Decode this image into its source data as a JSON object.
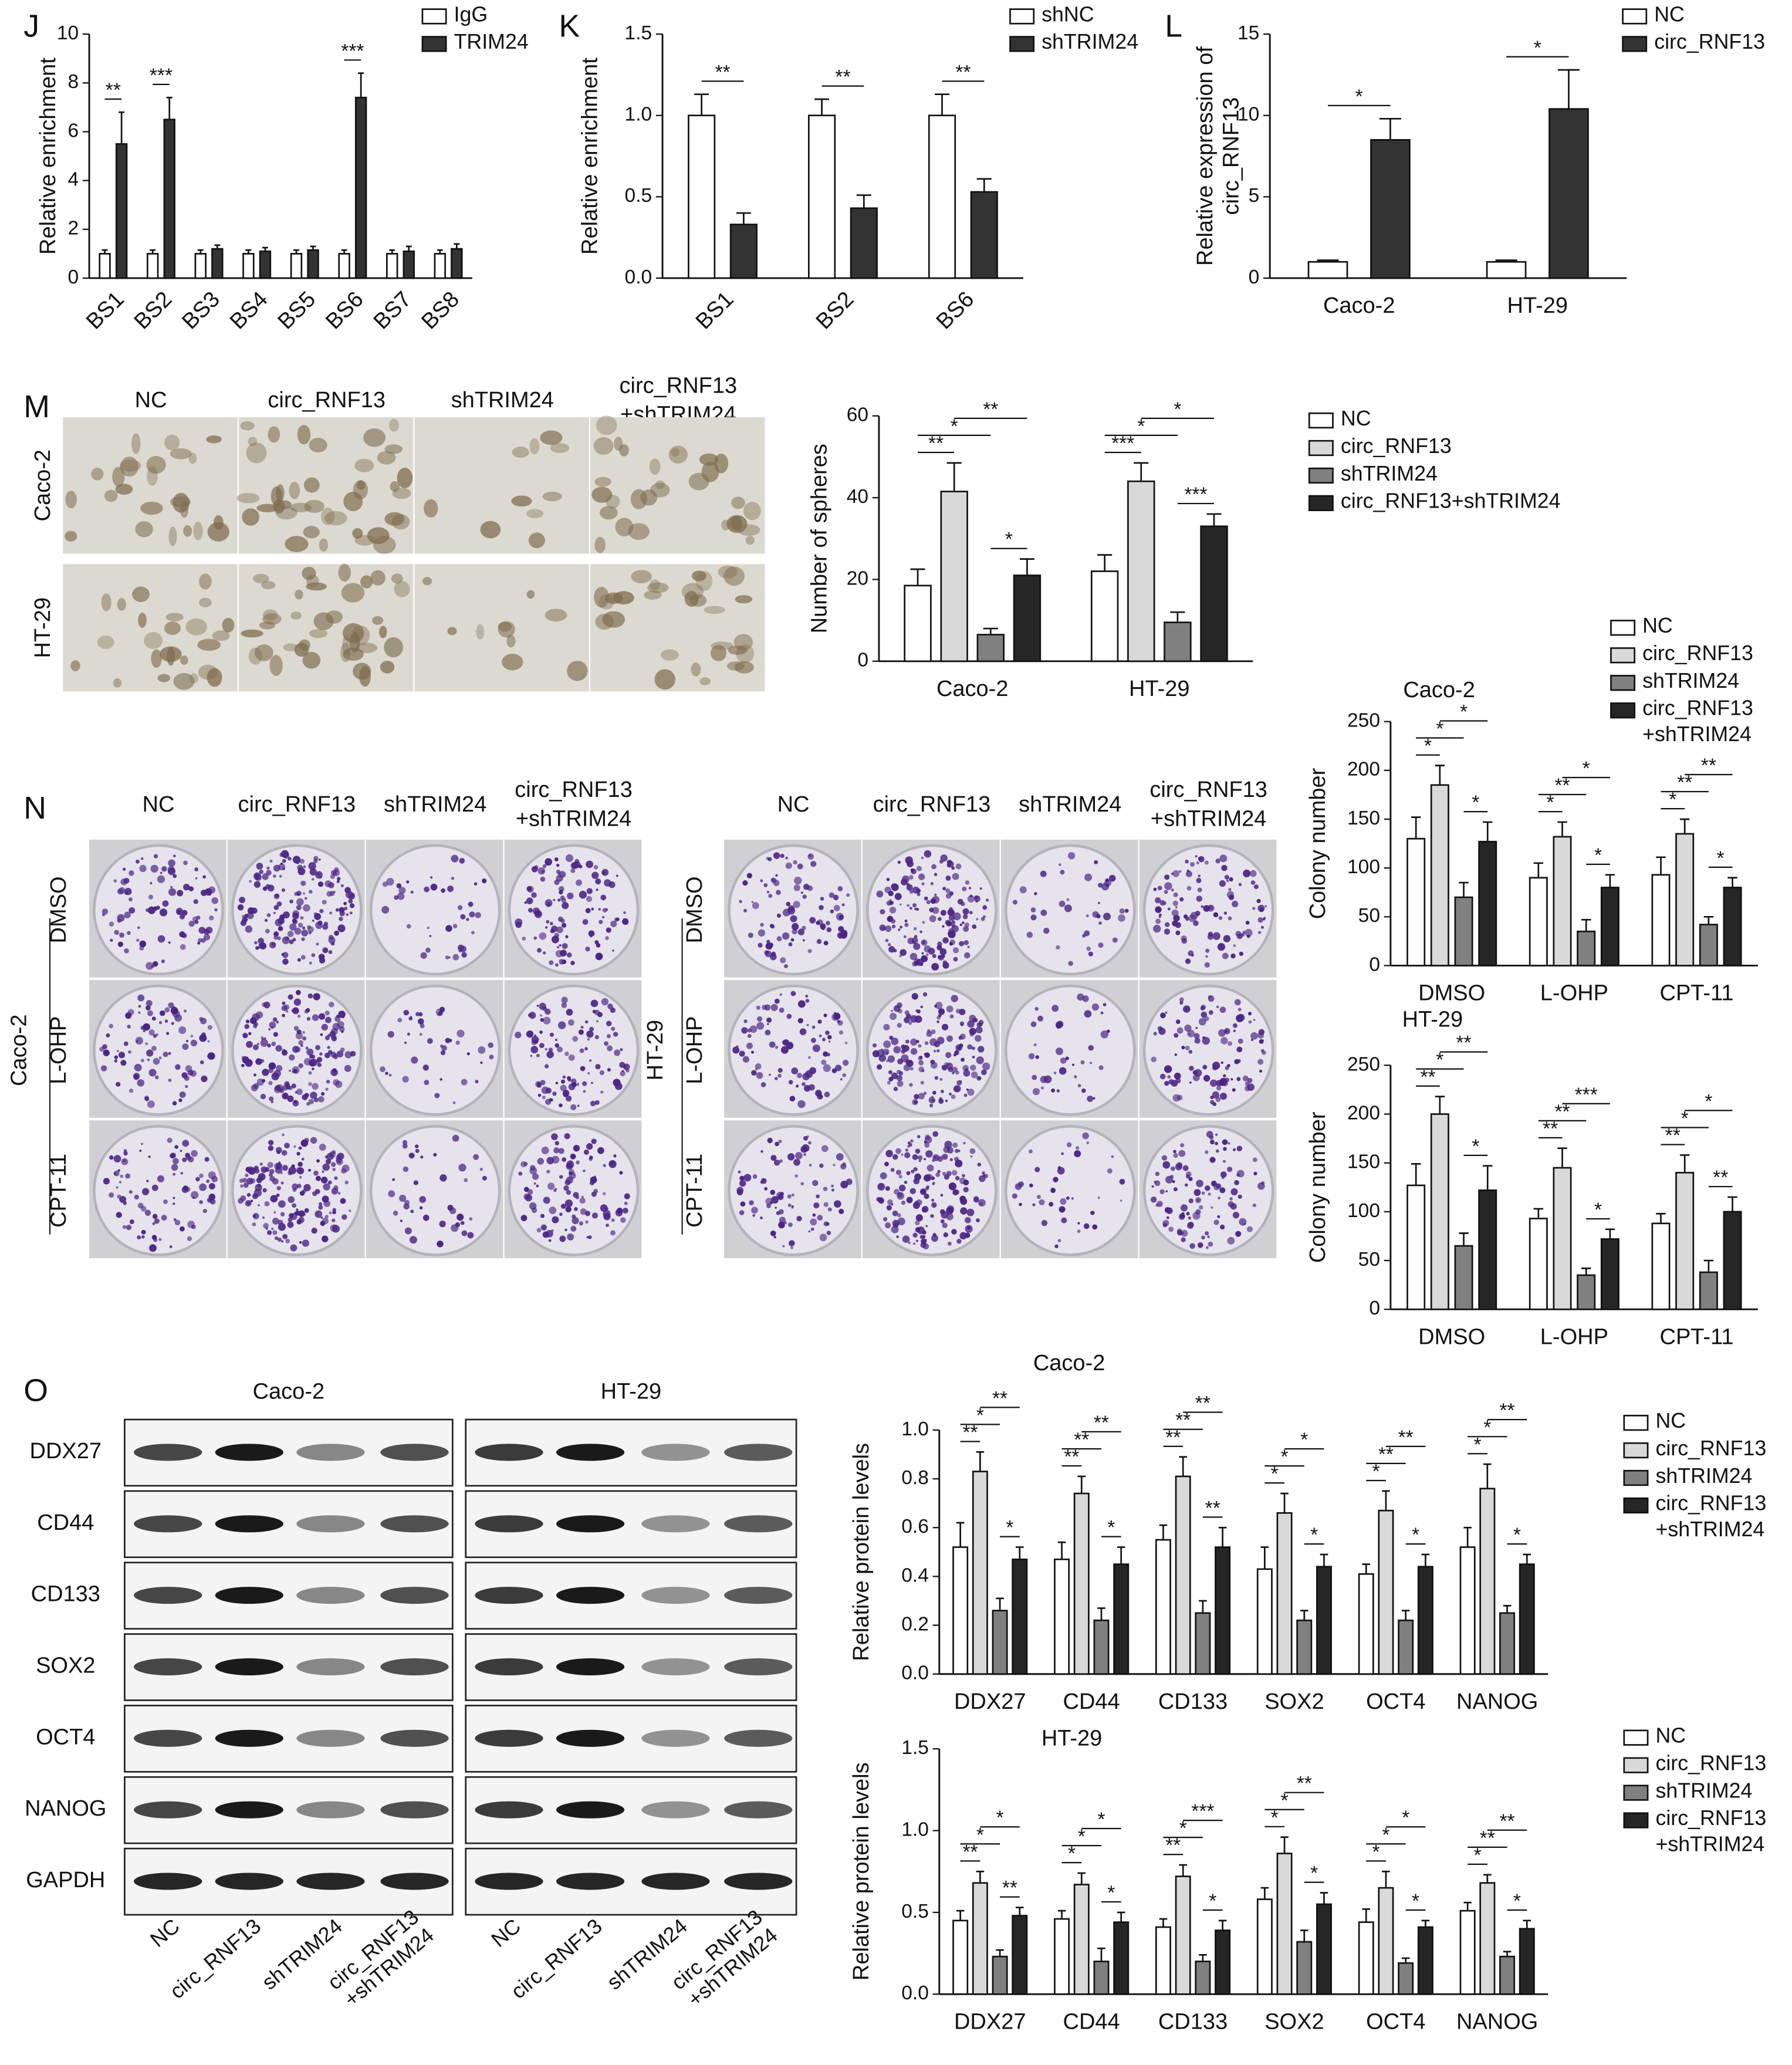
{
  "panels": [
    "J",
    "K",
    "L",
    "M",
    "N",
    "O"
  ],
  "sphere_photos": {
    "columns": [
      "NC",
      "circ_RNF13",
      "shTRIM24",
      [
        "circ_RNF13",
        "+shTRIM24"
      ]
    ],
    "rows": [
      "Caco-2",
      "HT-29"
    ]
  },
  "colony_photos": {
    "columns": [
      "NC",
      "circ_RNF13",
      "shTRIM24",
      [
        "circ_RNF13",
        "+shTRIM24"
      ]
    ],
    "rows": [
      "DMSO",
      "L-OHP",
      "CPT-11"
    ],
    "groups": [
      "Caco-2",
      "HT-29"
    ]
  },
  "blot": {
    "groups": [
      "Caco-2",
      "HT-29"
    ],
    "proteins": [
      "DDX27",
      "CD44",
      "CD133",
      "SOX2",
      "OCT4",
      "NANOG",
      "GAPDH"
    ],
    "lanes": [
      "NC",
      "circ_RNF13",
      "shTRIM24",
      [
        "circ_RNF13",
        "+shTRIM24"
      ]
    ]
  },
  "chart_data": [
    {
      "type": "bar",
      "y_label": "Relative enrichment",
      "categories": [
        "BS1",
        "BS2",
        "BS3",
        "BS4",
        "BS5",
        "BS6",
        "BS7",
        "BS8"
      ],
      "series": [
        {
          "name": "IgG",
          "color": "#ffffff",
          "values": [
            1,
            1,
            1,
            1,
            1,
            1,
            1,
            1
          ],
          "errors": [
            0.15,
            0.15,
            0.15,
            0.15,
            0.15,
            0.15,
            0.15,
            0.15
          ]
        },
        {
          "name": "TRIM24",
          "color": "#333333",
          "values": [
            5.5,
            6.5,
            1.2,
            1.1,
            1.15,
            7.4,
            1.1,
            1.2
          ],
          "errors": [
            1.3,
            0.9,
            0.15,
            0.15,
            0.15,
            1.0,
            0.2,
            0.2
          ]
        }
      ],
      "ylim": [
        0,
        10
      ],
      "yticks": [
        0,
        2,
        4,
        6,
        8,
        10
      ],
      "significance": [
        "**",
        "***",
        null,
        null,
        null,
        "***",
        null,
        null
      ],
      "legend": "upper right"
    },
    {
      "type": "bar",
      "y_label": "Relative enrichment",
      "categories": [
        "BS1",
        "BS2",
        "BS6"
      ],
      "series": [
        {
          "name": "shNC",
          "color": "#ffffff",
          "values": [
            1,
            1,
            1
          ],
          "errors": [
            0.13,
            0.1,
            0.13
          ]
        },
        {
          "name": "shTRIM24",
          "color": "#333333",
          "values": [
            0.33,
            0.43,
            0.53
          ],
          "errors": [
            0.07,
            0.08,
            0.08
          ]
        }
      ],
      "ylim": [
        0,
        1.5
      ],
      "yticks": [
        {
          "value": 0,
          "label": "0.0"
        },
        0.5,
        {
          "value": 1,
          "label": "1.0"
        },
        1.5
      ],
      "significance": [
        "**",
        "**",
        "**"
      ],
      "legend": "upper right"
    },
    {
      "type": "bar",
      "y_label": [
        "Relative expression of",
        "circ_RNF13"
      ],
      "categories": [
        "Caco-2",
        "HT-29"
      ],
      "series": [
        {
          "name": "NC",
          "color": "#ffffff",
          "values": [
            1,
            1
          ],
          "errors": [
            0.1,
            0.1
          ]
        },
        {
          "name": "circ_RNF13",
          "color": "#333333",
          "values": [
            8.5,
            10.4
          ],
          "errors": [
            1.3,
            2.4
          ]
        }
      ],
      "ylim": [
        0,
        15
      ],
      "yticks": [
        0,
        5,
        10,
        15
      ],
      "significance": [
        "*",
        "*"
      ],
      "legend": "upper right"
    },
    {
      "type": "bar",
      "y_label": "Number of spheres",
      "categories": [
        "Caco-2",
        "HT-29"
      ],
      "series": [
        {
          "name": "NC",
          "color": "#ffffff",
          "values": [
            18.5,
            22
          ],
          "errors": [
            4,
            4
          ]
        },
        {
          "name": "circ_RNF13",
          "color": "#d9d9d9",
          "values": [
            41.5,
            44
          ],
          "errors": [
            7,
            4.5
          ]
        },
        {
          "name": "shTRIM24",
          "color": "#808080",
          "values": [
            6.5,
            9.5
          ],
          "errors": [
            1.5,
            2.5
          ]
        },
        {
          "name": "circ_RNF13+shTRIM24",
          "color": "#262626",
          "values": [
            21,
            33
          ],
          "errors": [
            4,
            3
          ]
        }
      ],
      "ylim": [
        0,
        60
      ],
      "yticks": [
        0,
        20,
        40,
        60
      ],
      "significance": [
        [
          "**",
          "*",
          "**",
          "*"
        ],
        [
          "***",
          "*",
          "*",
          "***"
        ]
      ],
      "legend": "upper right"
    },
    {
      "type": "bar",
      "title": "Caco-2",
      "y_label": "Colony number",
      "categories": [
        "DMSO",
        "L-OHP",
        "CPT-11"
      ],
      "series": [
        {
          "name": "NC",
          "color": "#ffffff",
          "values": [
            130,
            90,
            93
          ],
          "errors": [
            22,
            15,
            18
          ]
        },
        {
          "name": "circ_RNF13",
          "color": "#d9d9d9",
          "values": [
            185,
            132,
            135
          ],
          "errors": [
            20,
            15,
            15
          ]
        },
        {
          "name": "shTRIM24",
          "color": "#808080",
          "values": [
            70,
            35,
            42
          ],
          "errors": [
            15,
            12,
            8
          ]
        },
        {
          "name": "circ_RNF13 +shTRIM24",
          "color": "#262626",
          "values": [
            127,
            80,
            80
          ],
          "errors": [
            20,
            13,
            10
          ]
        }
      ],
      "ylim": [
        0,
        250
      ],
      "yticks": [
        0,
        50,
        100,
        150,
        200,
        250
      ],
      "significance": [
        [
          "*",
          "*",
          "*",
          "*"
        ],
        [
          "*",
          "**",
          "*",
          "*"
        ],
        [
          "*",
          "**",
          "**",
          "*"
        ]
      ],
      "legend": "upper right"
    },
    {
      "type": "bar",
      "title": "HT-29",
      "y_label": "Colony number",
      "categories": [
        "DMSO",
        "L-OHP",
        "CPT-11"
      ],
      "series": [
        {
          "color": "#ffffff",
          "values": [
            127,
            93,
            88
          ],
          "errors": [
            22,
            10,
            10
          ]
        },
        {
          "color": "#d9d9d9",
          "values": [
            200,
            145,
            140
          ],
          "errors": [
            18,
            20,
            18
          ]
        },
        {
          "color": "#808080",
          "values": [
            65,
            35,
            38
          ],
          "errors": [
            13,
            7,
            12
          ]
        },
        {
          "color": "#262626",
          "values": [
            122,
            72,
            100
          ],
          "errors": [
            25,
            10,
            15
          ]
        }
      ],
      "ylim": [
        0,
        250
      ],
      "yticks": [
        0,
        50,
        100,
        150,
        200,
        250
      ],
      "significance": [
        [
          "**",
          "*",
          "**",
          "*"
        ],
        [
          "**",
          "**",
          "***",
          "*"
        ],
        [
          "**",
          "*",
          "*",
          "**"
        ]
      ],
      "legend": false
    },
    {
      "type": "bar",
      "title": "Caco-2",
      "y_label": "Relative protein levels",
      "categories": [
        "DDX27",
        "CD44",
        "CD133",
        "SOX2",
        "OCT4",
        "NANOG"
      ],
      "series": [
        {
          "name": "NC",
          "color": "#ffffff",
          "values": [
            0.52,
            0.47,
            0.55,
            0.43,
            0.41,
            0.52
          ],
          "errors": [
            0.1,
            0.07,
            0.06,
            0.09,
            0.04,
            0.08
          ]
        },
        {
          "name": "circ_RNF13",
          "color": "#d9d9d9",
          "values": [
            0.83,
            0.74,
            0.81,
            0.66,
            0.67,
            0.76
          ],
          "errors": [
            0.08,
            0.07,
            0.08,
            0.08,
            0.08,
            0.1
          ]
        },
        {
          "name": "shTRIM24",
          "color": "#808080",
          "values": [
            0.26,
            0.22,
            0.25,
            0.22,
            0.22,
            0.25
          ],
          "errors": [
            0.05,
            0.05,
            0.05,
            0.04,
            0.04,
            0.03
          ]
        },
        {
          "name": "circ_RNF13 +shTRIM24",
          "color": "#262626",
          "values": [
            0.47,
            0.45,
            0.52,
            0.44,
            0.44,
            0.45
          ],
          "errors": [
            0.05,
            0.07,
            0.08,
            0.05,
            0.05,
            0.04
          ]
        }
      ],
      "ylim": [
        0,
        1
      ],
      "yticks": [
        {
          "value": 0,
          "label": "0.0"
        },
        0.2,
        0.4,
        0.6,
        0.8,
        {
          "value": 1,
          "label": "1.0"
        }
      ],
      "significance": [
        [
          "**",
          "*",
          "**",
          "*"
        ],
        [
          "**",
          "**",
          "**",
          "*"
        ],
        [
          "**",
          "**",
          "**",
          "**"
        ],
        [
          "*",
          "*",
          "*",
          "*"
        ],
        [
          "*",
          "**",
          "**",
          "*"
        ],
        [
          "*",
          "*",
          "**",
          "*"
        ]
      ],
      "legend": "upper right"
    },
    {
      "type": "bar",
      "title": "HT-29",
      "y_label": "Relative protein levels",
      "categories": [
        "DDX27",
        "CD44",
        "CD133",
        "SOX2",
        "OCT4",
        "NANOG"
      ],
      "series": [
        {
          "name": "NC",
          "color": "#ffffff",
          "values": [
            0.45,
            0.46,
            0.41,
            0.58,
            0.44,
            0.51
          ],
          "errors": [
            0.06,
            0.05,
            0.05,
            0.07,
            0.08,
            0.05
          ]
        },
        {
          "name": "circ_RNF13",
          "color": "#d9d9d9",
          "values": [
            0.68,
            0.67,
            0.72,
            0.86,
            0.65,
            0.68
          ],
          "errors": [
            0.07,
            0.07,
            0.07,
            0.1,
            0.1,
            0.05
          ]
        },
        {
          "name": "shTRIM24",
          "color": "#808080",
          "values": [
            0.23,
            0.2,
            0.2,
            0.32,
            0.19,
            0.23
          ],
          "errors": [
            0.04,
            0.08,
            0.04,
            0.07,
            0.03,
            0.03
          ]
        },
        {
          "name": "circ_RNF13 +shTRIM24",
          "color": "#262626",
          "values": [
            0.48,
            0.44,
            0.39,
            0.55,
            0.41,
            0.4
          ],
          "errors": [
            0.05,
            0.06,
            0.06,
            0.07,
            0.04,
            0.05
          ]
        }
      ],
      "ylim": [
        0,
        1.5
      ],
      "yticks": [
        {
          "value": 0,
          "label": "0.0"
        },
        0.5,
        {
          "value": 1,
          "label": "1.0"
        },
        1.5
      ],
      "significance": [
        [
          "**",
          "*",
          "*",
          "**"
        ],
        [
          "*",
          "*",
          "*",
          "*"
        ],
        [
          "**",
          "*",
          "***",
          "*"
        ],
        [
          "*",
          "*",
          "**",
          "*"
        ],
        [
          "*",
          "*",
          "*",
          "*"
        ],
        [
          "*",
          "**",
          "**",
          "*"
        ]
      ],
      "legend": "upper right"
    }
  ]
}
